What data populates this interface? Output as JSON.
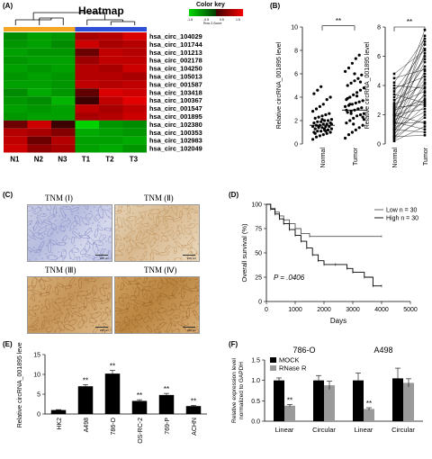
{
  "panels": {
    "A": "(A)",
    "B": "(B)",
    "C": "(C)",
    "D": "(D)",
    "E": "(E)",
    "F": "(F)"
  },
  "heatmap": {
    "title": "Heatmap",
    "color_key_title": "Color key",
    "color_key_ticks": [
      "-1.5",
      "-0.5",
      "0.5",
      "1.5"
    ],
    "color_key_sub": "Row Z-Score",
    "columns": [
      "N1",
      "N2",
      "N3",
      "T1",
      "T2",
      "T3"
    ],
    "rows": [
      "hsa_circ_104029",
      "hsa_circ_101744",
      "hsa_circ_101213",
      "hsa_circ_002178",
      "hsa_circ_104250",
      "hsa_circ_105013",
      "hsa_circ_001587",
      "hsa_circ_103418",
      "hsa_circ_100367",
      "hsa_circ_001547",
      "hsa_circ_001895",
      "hsa_circ_102380",
      "hsa_circ_100353",
      "hsa_circ_102983",
      "hsa_circ_102049"
    ],
    "group_colors": [
      "#f5a623",
      "#f5a623",
      "#f5a623",
      "#2f4fd8",
      "#2f4fd8",
      "#2f4fd8"
    ],
    "values": [
      [
        -0.8,
        -1.0,
        -0.9,
        0.9,
        1.0,
        1.3
      ],
      [
        -0.9,
        -1.0,
        -0.8,
        1.2,
        0.9,
        1.0
      ],
      [
        -1.0,
        -0.9,
        -0.9,
        0.4,
        1.1,
        1.0
      ],
      [
        -0.9,
        -1.0,
        -1.0,
        0.8,
        1.1,
        1.1
      ],
      [
        -1.0,
        -0.9,
        -1.0,
        1.0,
        0.9,
        1.2
      ],
      [
        -0.9,
        -1.0,
        -0.9,
        1.0,
        1.0,
        0.9
      ],
      [
        -1.0,
        -1.0,
        -0.9,
        1.1,
        1.0,
        1.1
      ],
      [
        -0.8,
        -1.1,
        -0.9,
        0.3,
        1.3,
        1.2
      ],
      [
        -0.9,
        -0.8,
        -1.2,
        0.0,
        1.1,
        1.4
      ],
      [
        -1.0,
        -0.9,
        -1.0,
        1.1,
        0.9,
        1.1
      ],
      [
        -0.9,
        -1.0,
        -1.0,
        0.9,
        1.0,
        1.2
      ],
      [
        0.4,
        1.2,
        0.0,
        -1.5,
        -0.9,
        -0.8
      ],
      [
        1.0,
        0.9,
        0.6,
        -1.1,
        -1.0,
        -0.9
      ],
      [
        1.1,
        0.4,
        1.0,
        -1.0,
        -1.0,
        -1.1
      ],
      [
        1.2,
        0.7,
        0.9,
        -1.0,
        -1.1,
        -0.9
      ]
    ]
  },
  "chart_data": [
    {
      "type": "scatter",
      "ylabel": "Relative circRNA_001895 level",
      "categories": [
        "Normal",
        "Tumor"
      ],
      "ylim": [
        0,
        10
      ],
      "yticks": [
        "0",
        "2",
        "4",
        "6",
        "8",
        "10"
      ],
      "significance": "**",
      "series": [
        {
          "values": [
            0.4,
            0.6,
            0.7,
            0.8,
            0.9,
            1.0,
            1.0,
            1.1,
            1.1,
            1.2,
            1.2,
            1.3,
            1.3,
            1.4,
            1.4,
            1.5,
            1.5,
            1.5,
            1.6,
            1.6,
            1.7,
            1.7,
            1.8,
            1.8,
            1.9,
            1.9,
            2.0,
            2.0,
            2.1,
            2.2,
            2.3,
            2.4,
            2.5,
            2.6,
            2.8,
            3.0,
            3.2,
            3.4,
            3.8,
            4.0,
            4.3,
            4.6,
            4.9,
            1.3,
            1.2,
            1.7,
            0.9,
            1.5,
            2.1,
            1.1
          ]
        },
        {
          "values": [
            0.5,
            0.8,
            1.0,
            1.2,
            1.4,
            1.6,
            1.8,
            2.0,
            2.2,
            2.4,
            2.5,
            2.6,
            2.7,
            2.8,
            2.9,
            3.0,
            3.1,
            3.2,
            3.3,
            3.4,
            3.5,
            3.6,
            3.7,
            3.8,
            4.0,
            4.2,
            4.4,
            4.6,
            4.8,
            5.0,
            5.2,
            5.4,
            5.6,
            5.9,
            6.2,
            6.5,
            6.9,
            7.3,
            7.6,
            2.3,
            2.9,
            3.4,
            1.7,
            4.1,
            5.3,
            2.1,
            3.9,
            2.6,
            6.0,
            3.0
          ]
        }
      ],
      "mean_lines": [
        1.6,
        2.9
      ]
    },
    {
      "type": "line",
      "ylabel": "Relative circRNA_001895 level",
      "categories": [
        "Normal",
        "Tumor"
      ],
      "ylim": [
        0,
        8
      ],
      "yticks": [
        "0",
        "2",
        "4",
        "6",
        "8"
      ],
      "significance": "**",
      "pairs": [
        [
          0.2,
          1.2
        ],
        [
          0.3,
          2.0
        ],
        [
          0.4,
          3.5
        ],
        [
          0.5,
          1.8
        ],
        [
          0.6,
          4.2
        ],
        [
          0.7,
          2.6
        ],
        [
          0.8,
          5.0
        ],
        [
          0.9,
          3.1
        ],
        [
          1.0,
          6.2
        ],
        [
          1.1,
          2.2
        ],
        [
          1.2,
          7.4
        ],
        [
          1.3,
          3.9
        ],
        [
          1.4,
          1.5
        ],
        [
          1.5,
          4.8
        ],
        [
          1.6,
          2.9
        ],
        [
          1.7,
          6.8
        ],
        [
          1.8,
          3.3
        ],
        [
          1.9,
          5.6
        ],
        [
          2.0,
          2.4
        ],
        [
          2.1,
          7.8
        ],
        [
          2.2,
          4.4
        ],
        [
          2.3,
          3.0
        ],
        [
          2.4,
          6.0
        ],
        [
          2.5,
          2.7
        ],
        [
          2.6,
          5.3
        ],
        [
          2.7,
          3.6
        ],
        [
          2.8,
          7.0
        ],
        [
          3.0,
          4.1
        ],
        [
          3.2,
          5.8
        ],
        [
          3.4,
          2.8
        ],
        [
          3.6,
          6.5
        ],
        [
          3.8,
          4.6
        ],
        [
          4.0,
          3.8
        ],
        [
          4.2,
          7.2
        ],
        [
          4.5,
          5.1
        ],
        [
          4.8,
          6.4
        ],
        [
          1.0,
          0.8
        ],
        [
          0.5,
          0.6
        ],
        [
          1.5,
          1.0
        ],
        [
          2.0,
          1.4
        ]
      ]
    },
    {
      "type": "line",
      "xlabel": "Days",
      "ylabel": "Overall survival (%)",
      "xlim": [
        0,
        5000
      ],
      "ylim": [
        0,
        100
      ],
      "xticks": [
        "0",
        "1000",
        "2000",
        "3000",
        "4000",
        "5000"
      ],
      "yticks": [
        "0",
        "25",
        "50",
        "75",
        "100"
      ],
      "annotation": "P = .0406",
      "legend": [
        "Low n = 30",
        "High n = 30"
      ],
      "series": [
        {
          "name": "Low n = 30",
          "x": [
            0,
            150,
            300,
            450,
            600,
            800,
            1000,
            1200,
            1500,
            4000
          ],
          "y": [
            100,
            96,
            92,
            88,
            84,
            80,
            75,
            70,
            67,
            67
          ]
        },
        {
          "name": "High n = 30",
          "x": [
            0,
            150,
            300,
            450,
            600,
            800,
            1000,
            1200,
            1400,
            1600,
            1800,
            2000,
            2400,
            2800,
            3000,
            3400,
            3700,
            4000
          ],
          "y": [
            100,
            95,
            90,
            85,
            80,
            74,
            68,
            62,
            55,
            48,
            42,
            38,
            38,
            34,
            30,
            25,
            16,
            16
          ]
        }
      ]
    },
    {
      "type": "bar",
      "ylabel": "Relative circRNA_001895 level",
      "categories": [
        "HK2",
        "A498",
        "786-O",
        "OS-RC-2",
        "769-P",
        "ACHN"
      ],
      "values": [
        1.0,
        7.0,
        10.2,
        3.3,
        4.8,
        2.0
      ],
      "errors": [
        0.1,
        0.4,
        0.8,
        0.3,
        0.4,
        0.2
      ],
      "significance": [
        "",
        "**",
        "**",
        "**",
        "**",
        "**"
      ],
      "ylim": [
        0,
        15
      ],
      "yticks": [
        "0",
        "5",
        "10",
        "15"
      ]
    },
    {
      "type": "bar",
      "ylabel": "Relative expression level normalized to GAPDH",
      "groups": [
        "786-O",
        "A498"
      ],
      "categories": [
        "Linear",
        "Circular",
        "Linear",
        "Circular"
      ],
      "ylim": [
        0,
        1.5
      ],
      "yticks": [
        "0.0",
        "0.5",
        "1.0",
        "1.5"
      ],
      "legend": [
        "MOCK",
        "RNase R"
      ],
      "series": [
        {
          "name": "MOCK",
          "values": [
            1.0,
            1.0,
            1.0,
            1.05
          ],
          "errors": [
            0.06,
            0.12,
            0.18,
            0.25
          ]
        },
        {
          "name": "RNase R",
          "values": [
            0.38,
            0.88,
            0.3,
            0.94
          ],
          "errors": [
            0.03,
            0.1,
            0.03,
            0.1
          ]
        }
      ],
      "significance": [
        "**",
        "",
        "**",
        ""
      ]
    }
  ],
  "tnm": {
    "tiles": [
      "TNM (Ⅰ)",
      "TNM (Ⅱ)",
      "TNM (Ⅲ)",
      "TNM (Ⅳ)"
    ],
    "scale": "200 μm"
  }
}
